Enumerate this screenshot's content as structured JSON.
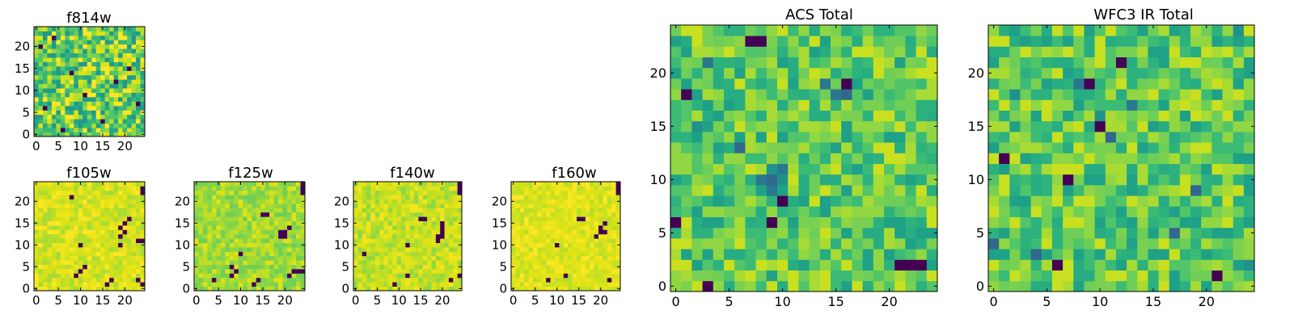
{
  "chart_data": [
    {
      "type": "heatmap",
      "title": "f814w",
      "grid_size": [
        25,
        25
      ],
      "xlim": [
        -0.5,
        24.5
      ],
      "ylim": [
        -0.5,
        24.5
      ],
      "xticks": [
        0,
        5,
        10,
        15,
        20
      ],
      "yticks": [
        0,
        5,
        10,
        15,
        20
      ],
      "colormap": "viridis",
      "low_cells": [
        [
          1,
          20
        ],
        [
          4,
          22
        ],
        [
          8,
          14
        ],
        [
          15,
          3
        ],
        [
          21,
          15
        ],
        [
          11,
          9
        ],
        [
          2,
          6
        ],
        [
          18,
          12
        ],
        [
          6,
          1
        ],
        [
          23,
          7
        ]
      ]
    },
    {
      "type": "heatmap",
      "title": "f105w",
      "grid_size": [
        25,
        25
      ],
      "xlim": [
        -0.5,
        24.5
      ],
      "ylim": [
        -0.5,
        24.5
      ],
      "xticks": [
        0,
        5,
        10,
        15,
        20
      ],
      "yticks": [
        0,
        5,
        10,
        15,
        20
      ],
      "colormap": "viridis",
      "low_cells": [
        [
          24,
          23
        ],
        [
          24,
          22
        ],
        [
          8,
          21
        ],
        [
          21,
          16
        ],
        [
          20,
          15
        ],
        [
          19,
          14
        ],
        [
          20,
          13
        ],
        [
          19,
          12
        ],
        [
          24,
          11
        ],
        [
          23,
          11
        ],
        [
          10,
          10
        ],
        [
          19,
          10
        ],
        [
          11,
          5
        ],
        [
          10,
          4
        ],
        [
          9,
          3
        ],
        [
          17,
          2
        ],
        [
          16,
          1
        ],
        [
          24,
          1
        ],
        [
          23,
          2
        ]
      ]
    },
    {
      "type": "heatmap",
      "title": "f125w",
      "grid_size": [
        25,
        25
      ],
      "xlim": [
        -0.5,
        24.5
      ],
      "ylim": [
        -0.5,
        24.5
      ],
      "xticks": [
        0,
        5,
        10,
        15,
        20
      ],
      "yticks": [
        0,
        5,
        10,
        15,
        20
      ],
      "colormap": "viridis",
      "low_cells": [
        [
          24,
          24
        ],
        [
          24,
          23
        ],
        [
          24,
          22
        ],
        [
          15,
          17
        ],
        [
          16,
          17
        ],
        [
          21,
          14
        ],
        [
          20,
          13
        ],
        [
          19,
          13
        ],
        [
          20,
          12
        ],
        [
          19,
          12
        ],
        [
          10,
          8
        ],
        [
          8,
          5
        ],
        [
          9,
          4
        ],
        [
          8,
          3
        ],
        [
          14,
          2
        ],
        [
          13,
          1
        ],
        [
          22,
          4
        ],
        [
          23,
          4
        ],
        [
          24,
          4
        ],
        [
          21,
          3
        ],
        [
          4,
          2
        ]
      ]
    },
    {
      "type": "heatmap",
      "title": "f140w",
      "grid_size": [
        25,
        25
      ],
      "xlim": [
        -0.5,
        24.5
      ],
      "ylim": [
        -0.5,
        24.5
      ],
      "xticks": [
        0,
        5,
        10,
        15,
        20
      ],
      "yticks": [
        0,
        5,
        10,
        15,
        20
      ],
      "colormap": "viridis",
      "low_cells": [
        [
          24,
          24
        ],
        [
          24,
          23
        ],
        [
          24,
          22
        ],
        [
          15,
          16
        ],
        [
          16,
          16
        ],
        [
          20,
          15
        ],
        [
          20,
          14
        ],
        [
          20,
          13
        ],
        [
          19,
          12
        ],
        [
          20,
          12
        ],
        [
          19,
          11
        ],
        [
          12,
          10
        ],
        [
          2,
          8
        ],
        [
          12,
          3
        ],
        [
          9,
          1
        ],
        [
          22,
          2
        ],
        [
          24,
          3
        ]
      ]
    },
    {
      "type": "heatmap",
      "title": "f160w",
      "grid_size": [
        25,
        25
      ],
      "xlim": [
        -0.5,
        24.5
      ],
      "ylim": [
        -0.5,
        24.5
      ],
      "xticks": [
        0,
        5,
        10,
        15,
        20
      ],
      "yticks": [
        0,
        5,
        10,
        15,
        20
      ],
      "colormap": "viridis",
      "low_cells": [
        [
          24,
          24
        ],
        [
          24,
          23
        ],
        [
          24,
          22
        ],
        [
          15,
          16
        ],
        [
          16,
          16
        ],
        [
          21,
          15
        ],
        [
          20,
          14
        ],
        [
          20,
          13
        ],
        [
          21,
          13
        ],
        [
          19,
          12
        ],
        [
          10,
          10
        ],
        [
          12,
          3
        ],
        [
          8,
          2
        ],
        [
          22,
          2
        ]
      ]
    },
    {
      "type": "heatmap",
      "title": "ACS Total",
      "grid_size": [
        25,
        25
      ],
      "xlim": [
        -0.5,
        24.5
      ],
      "ylim": [
        -0.5,
        24.5
      ],
      "xticks": [
        0,
        5,
        10,
        15,
        20
      ],
      "yticks": [
        0,
        5,
        10,
        15,
        20
      ],
      "colormap": "viridis",
      "low_cells": [
        [
          7,
          23
        ],
        [
          8,
          23
        ],
        [
          16,
          19
        ],
        [
          1,
          18
        ],
        [
          10,
          8
        ],
        [
          9,
          6
        ],
        [
          0,
          6
        ],
        [
          3,
          0
        ],
        [
          21,
          2
        ],
        [
          22,
          2
        ],
        [
          23,
          2
        ]
      ],
      "mid_cells": [
        [
          9,
          11
        ],
        [
          10,
          11
        ],
        [
          8,
          10
        ],
        [
          9,
          10
        ],
        [
          10,
          10
        ],
        [
          9,
          9
        ],
        [
          15,
          18
        ],
        [
          16,
          18
        ],
        [
          3,
          21
        ],
        [
          14,
          19
        ],
        [
          2,
          15
        ],
        [
          6,
          13
        ]
      ]
    },
    {
      "type": "heatmap",
      "title": "WFC3 IR Total",
      "grid_size": [
        25,
        25
      ],
      "xlim": [
        -0.5,
        24.5
      ],
      "ylim": [
        -0.5,
        24.5
      ],
      "xticks": [
        0,
        5,
        10,
        15,
        20
      ],
      "yticks": [
        0,
        5,
        10,
        15,
        20
      ],
      "colormap": "viridis",
      "low_cells": [
        [
          12,
          21
        ],
        [
          9,
          19
        ],
        [
          10,
          15
        ],
        [
          1,
          12
        ],
        [
          7,
          10
        ],
        [
          6,
          2
        ],
        [
          21,
          1
        ]
      ],
      "mid_cells": [
        [
          23,
          24
        ],
        [
          8,
          19
        ],
        [
          2,
          18
        ],
        [
          13,
          17
        ],
        [
          10,
          16
        ],
        [
          11,
          14
        ],
        [
          0,
          4
        ],
        [
          4,
          3
        ],
        [
          24,
          2
        ],
        [
          17,
          5
        ],
        [
          19,
          9
        ]
      ]
    }
  ]
}
